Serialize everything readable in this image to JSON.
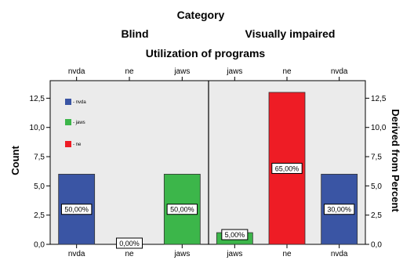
{
  "header": {
    "category_title": "Category",
    "panel_labels": [
      "Blind",
      "Visually impaired"
    ],
    "subtitle": "Utilization of programs"
  },
  "chart_data": {
    "type": "bar",
    "title": "Utilization of programs",
    "ylabel": "Count",
    "y2label": "Derived from Percent",
    "ylim": [
      0,
      14
    ],
    "yticks": [
      "0,0",
      "2,5",
      "5,0",
      "7,5",
      "10,0",
      "12,5"
    ],
    "yticks_values": [
      0,
      2.5,
      5,
      7.5,
      10,
      12.5
    ],
    "grid": false,
    "legend_position": "top-left",
    "legend": [
      {
        "label": "- nvda",
        "color": "#3a55a4"
      },
      {
        "label": "- jaws",
        "color": "#3cb64a"
      },
      {
        "label": "- ne",
        "color": "#ee1c25"
      }
    ],
    "panels": [
      {
        "name": "Blind",
        "categories": [
          "nvda",
          "ne",
          "jaws"
        ],
        "values": [
          6,
          0,
          6
        ],
        "labels": [
          "50,00%",
          "0,00%",
          "50,00%"
        ],
        "colors": [
          "#3a55a4",
          "#ee1c25",
          "#3cb64a"
        ]
      },
      {
        "name": "Visually impaired",
        "categories": [
          "jaws",
          "ne",
          "nvda"
        ],
        "values": [
          1,
          13,
          6
        ],
        "labels": [
          "5,00%",
          "65,00%",
          "30,00%"
        ],
        "colors": [
          "#3cb64a",
          "#ee1c25",
          "#3a55a4"
        ]
      }
    ]
  }
}
